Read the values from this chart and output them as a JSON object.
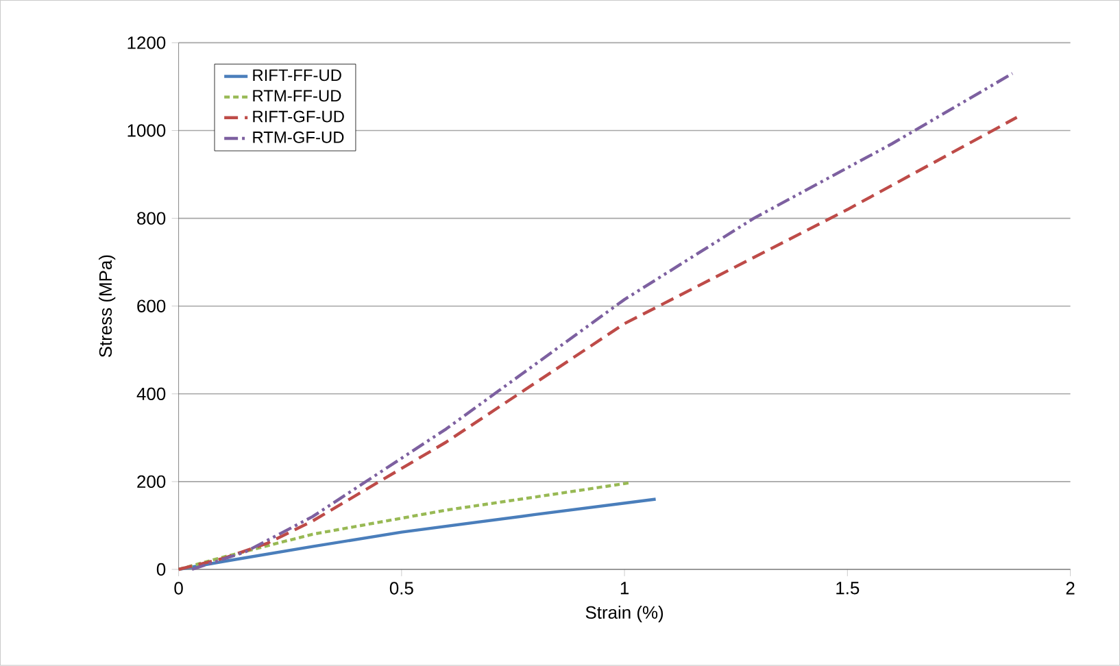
{
  "chart_data": {
    "type": "line",
    "xlabel": "Strain (%)",
    "ylabel": "Stress (MPa)",
    "xlim": [
      0,
      2
    ],
    "ylim": [
      0,
      1200
    ],
    "xticks": [
      0,
      0.5,
      1,
      1.5,
      2
    ],
    "yticks": [
      0,
      200,
      400,
      600,
      800,
      1000,
      1200
    ],
    "grid": "y",
    "legend": "top left",
    "series": [
      {
        "name": "RIFT-FF-UD",
        "color": "#4a7ebb",
        "line_style": "solid",
        "x": [
          0,
          0.1,
          0.3,
          0.5,
          0.8,
          1.07
        ],
        "values": [
          0,
          18,
          52,
          85,
          125,
          160
        ]
      },
      {
        "name": "RTM-FF-UD",
        "color": "#98b954",
        "line_style": "dotted",
        "x": [
          0,
          0.1,
          0.3,
          0.6,
          0.8,
          1.01
        ],
        "values": [
          0,
          28,
          80,
          135,
          165,
          197
        ]
      },
      {
        "name": "RIFT-GF-UD",
        "color": "#be4b48",
        "line_style": "dashed",
        "x": [
          0,
          0.1,
          0.2,
          0.3,
          0.45,
          0.6,
          1.0,
          1.5,
          1.88
        ],
        "values": [
          0,
          25,
          60,
          110,
          200,
          290,
          560,
          820,
          1030
        ]
      },
      {
        "name": "RTM-GF-UD",
        "color": "#7d60a0",
        "line_style": "dashdotdotted",
        "x": [
          0.03,
          0.15,
          0.3,
          0.45,
          0.6,
          1.0,
          1.29,
          1.6,
          1.87
        ],
        "values": [
          0,
          40,
          120,
          220,
          320,
          615,
          800,
          970,
          1130
        ]
      }
    ]
  }
}
